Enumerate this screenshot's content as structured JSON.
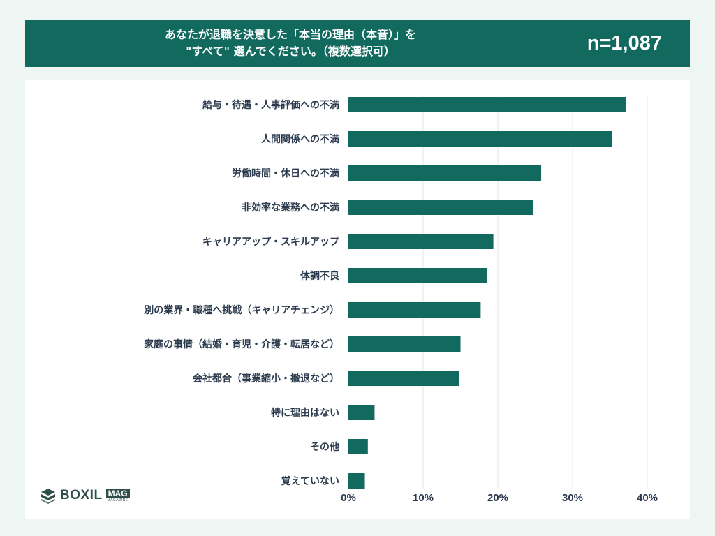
{
  "header": {
    "title_line1": "あなたが退職を決意した「本当の理由（本音）」を",
    "title_line2": "\"すべて\" 選んでください。（複数選択可）",
    "sample_size": "n=1,087"
  },
  "logo": {
    "wordmark": "BOXIL",
    "badge": "MAG",
    "badge_sub": "MAGAZINE"
  },
  "colors": {
    "header_bg": "#126a5f",
    "bar": "#126a5f",
    "page_bg": "#eef6f4"
  },
  "chart_data": {
    "type": "bar",
    "orientation": "horizontal",
    "categories": [
      "給与・待遇・人事評価への不満",
      "人間関係への不満",
      "労働時間・休日への不満",
      "非効率な業務への不満",
      "キャリアアップ・スキルアップ",
      "体調不良",
      "別の業界・職種へ挑戦（キャリアチェンジ）",
      "家庭の事情（結婚・育児・介護・転居など）",
      "会社都合（事業縮小・撤退など）",
      "特に理由はない",
      "その他",
      "覚えていない"
    ],
    "values": [
      37.1,
      35.3,
      25.8,
      24.7,
      19.4,
      18.6,
      17.7,
      15.0,
      14.8,
      3.5,
      2.6,
      2.2
    ],
    "xlim": [
      0,
      40
    ],
    "xticks": [
      "0%",
      "10%",
      "20%",
      "30%",
      "40%"
    ],
    "xtick_values": [
      0,
      10,
      20,
      30,
      40
    ],
    "grid": true,
    "legend": "none"
  }
}
